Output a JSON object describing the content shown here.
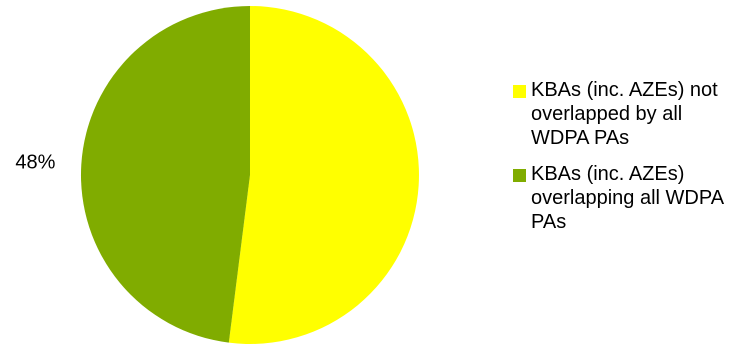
{
  "chart_data": {
    "type": "pie",
    "slices": [
      {
        "label": "KBAs (inc. AZEs) not overlapped by all WDPA PAs",
        "value": 52,
        "color": "#ffff00",
        "data_label": ""
      },
      {
        "label": "KBAs (inc. AZEs) overlapping all WDPA PAs",
        "value": 48,
        "color": "#80ac00",
        "data_label": "48%"
      }
    ],
    "legend_position": "right"
  }
}
